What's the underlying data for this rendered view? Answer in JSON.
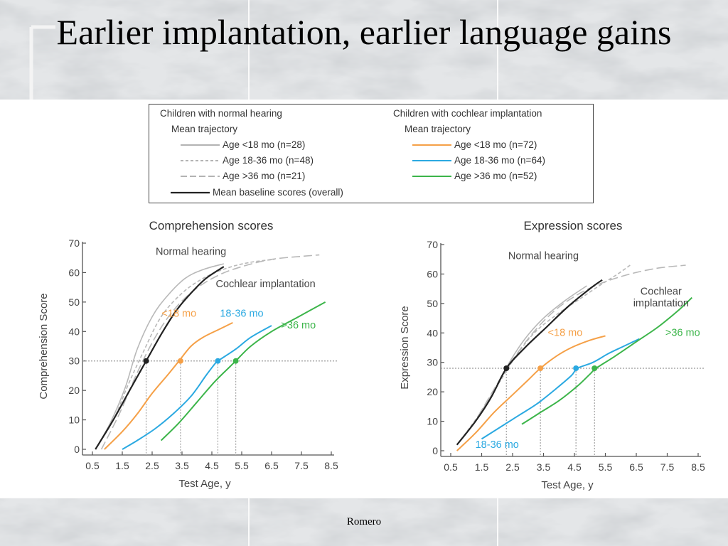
{
  "slide": {
    "title": "Earlier implantation, earlier language gains",
    "footer": "Romero"
  },
  "legend": {
    "normal_heading": "Children with normal hearing",
    "normal_sub": "Mean trajectory",
    "normal_items": [
      "Age <18 mo (n=28)",
      "Age 18-36 mo (n=48)",
      "Age >36 mo (n=21)"
    ],
    "baseline": "Mean baseline scores (overall)",
    "ci_heading": "Children with cochlear implantation",
    "ci_sub": "Mean trajectory",
    "ci_items": [
      "Age <18 mo (n=72)",
      "Age 18-36 mo (n=64)",
      "Age >36 mo (n=52)"
    ]
  },
  "colors": {
    "orange": "#f5a047",
    "blue": "#2ba9e1",
    "green": "#3cb54a",
    "normal_gray": "#b4b4b4",
    "baseline": "#222222"
  },
  "chart_data": [
    {
      "type": "line",
      "title": "Comprehension scores",
      "xlabel": "Test Age, y",
      "ylabel": "Comprehension Score",
      "xlim": [
        0.5,
        8.5
      ],
      "ylim": [
        0,
        70
      ],
      "xticks": [
        "0.5",
        "1.5",
        "2.5",
        "3.5",
        "4.5",
        "5.5",
        "6.5",
        "7.5",
        "8.5"
      ],
      "yticks": [
        "0",
        "10",
        "20",
        "30",
        "40",
        "50",
        "60",
        "70"
      ],
      "reference_score": 30,
      "annotations": [
        {
          "text": "Normal hearing",
          "x": 3.8,
          "y": 66,
          "color": "#444444"
        },
        {
          "text": "Cochlear implantation",
          "x": 6.3,
          "y": 55,
          "color": "#444444"
        },
        {
          "text": "<18 mo",
          "x": 3.4,
          "y": 45,
          "color": "#f5a047"
        },
        {
          "text": "18-36 mo",
          "x": 5.5,
          "y": 45,
          "color": "#2ba9e1"
        },
        {
          "text": ">36 mo",
          "x": 7.4,
          "y": 41,
          "color": "#3cb54a"
        }
      ],
      "series": [
        {
          "key": "normal_lt18",
          "style": "solid",
          "color": "#b8b8b8",
          "points": [
            [
              0.6,
              0
            ],
            [
              1.1,
              9
            ],
            [
              1.6,
              21
            ],
            [
              2.0,
              34
            ],
            [
              2.5,
              45
            ],
            [
              3.0,
              52
            ],
            [
              3.6,
              58
            ],
            [
              4.2,
              61
            ],
            [
              4.9,
              63
            ]
          ]
        },
        {
          "key": "normal_18_36",
          "style": "dashed",
          "color": "#b8b8b8",
          "points": [
            [
              0.6,
              0
            ],
            [
              1.2,
              10
            ],
            [
              1.7,
              22
            ],
            [
              2.2,
              33
            ],
            [
              2.8,
              45
            ],
            [
              3.5,
              53
            ],
            [
              4.2,
              58
            ],
            [
              5.0,
              61.5
            ],
            [
              5.8,
              63.5
            ],
            [
              6.6,
              64.5
            ]
          ]
        },
        {
          "key": "normal_gt36",
          "style": "longdash",
          "color": "#b8b8b8",
          "points": [
            [
              0.8,
              0
            ],
            [
              1.4,
              12
            ],
            [
              2.0,
              26
            ],
            [
              2.6,
              38
            ],
            [
              3.2,
              47
            ],
            [
              3.9,
              54
            ],
            [
              4.7,
              59
            ],
            [
              5.5,
              62
            ],
            [
              6.5,
              64.5
            ],
            [
              7.5,
              65.5
            ],
            [
              8.1,
              66
            ]
          ]
        },
        {
          "key": "baseline",
          "style": "solid",
          "color": "#222222",
          "points": [
            [
              0.6,
              0
            ],
            [
              1.2,
              10
            ],
            [
              1.8,
              21
            ],
            [
              2.3,
              30
            ],
            [
              2.8,
              39
            ],
            [
              3.3,
              47
            ],
            [
              3.8,
              53
            ],
            [
              4.3,
              58
            ],
            [
              4.9,
              62
            ]
          ]
        },
        {
          "key": "ci_lt18",
          "style": "solid",
          "color": "#f5a047",
          "points": [
            [
              0.9,
              0
            ],
            [
              1.5,
              6
            ],
            [
              2.0,
              12
            ],
            [
              2.5,
              19
            ],
            [
              3.0,
              25
            ],
            [
              3.4,
              30
            ],
            [
              3.8,
              35
            ],
            [
              4.2,
              38
            ],
            [
              4.8,
              41
            ],
            [
              5.2,
              43
            ]
          ]
        },
        {
          "key": "ci_18_36",
          "style": "solid",
          "color": "#2ba9e1",
          "points": [
            [
              1.5,
              0
            ],
            [
              2.0,
              3
            ],
            [
              2.6,
              7
            ],
            [
              3.2,
              12
            ],
            [
              3.8,
              18
            ],
            [
              4.3,
              25
            ],
            [
              4.6,
              29
            ],
            [
              4.7,
              30
            ],
            [
              5.3,
              34
            ],
            [
              5.8,
              38
            ],
            [
              6.5,
              42
            ]
          ]
        },
        {
          "key": "ci_gt36",
          "style": "solid",
          "color": "#3cb54a",
          "points": [
            [
              2.8,
              3
            ],
            [
              3.4,
              9
            ],
            [
              4.0,
              16
            ],
            [
              4.6,
              23
            ],
            [
              5.1,
              28
            ],
            [
              5.3,
              30
            ],
            [
              5.8,
              35
            ],
            [
              6.5,
              40
            ],
            [
              7.4,
              45
            ],
            [
              8.3,
              50
            ]
          ]
        }
      ],
      "markers": [
        {
          "x": 2.3,
          "y": 30,
          "color": "#222222"
        },
        {
          "x": 3.45,
          "y": 30,
          "color": "#f5a047"
        },
        {
          "x": 4.7,
          "y": 30,
          "color": "#2ba9e1"
        },
        {
          "x": 5.3,
          "y": 30,
          "color": "#3cb54a"
        }
      ]
    },
    {
      "type": "line",
      "title": "Expression scores",
      "xlabel": "Test Age, y",
      "ylabel": "Expression Score",
      "xlim": [
        0.5,
        8.5
      ],
      "ylim": [
        0,
        70
      ],
      "xticks": [
        "0.5",
        "1.5",
        "2.5",
        "3.5",
        "4.5",
        "5.5",
        "6.5",
        "7.5",
        "8.5"
      ],
      "yticks": [
        "0",
        "10",
        "20",
        "30",
        "40",
        "50",
        "60",
        "70"
      ],
      "reference_score": 28,
      "annotations": [
        {
          "text": "Normal hearing",
          "x": 3.5,
          "y": 65,
          "color": "#444444"
        },
        {
          "text": "Cochlear",
          "x": 7.3,
          "y": 53,
          "color": "#444444"
        },
        {
          "text": "implantation",
          "x": 7.3,
          "y": 49,
          "color": "#444444"
        },
        {
          "text": "<18 mo",
          "x": 4.2,
          "y": 39,
          "color": "#f5a047"
        },
        {
          "text": ">36 mo",
          "x": 8.0,
          "y": 39,
          "color": "#3cb54a"
        },
        {
          "text": "18-36 mo",
          "x": 2.0,
          "y": 1,
          "color": "#2ba9e1"
        }
      ],
      "series": [
        {
          "key": "normal_lt18",
          "style": "solid",
          "color": "#b8b8b8",
          "points": [
            [
              0.7,
              2
            ],
            [
              1.3,
              10
            ],
            [
              1.9,
              20
            ],
            [
              2.4,
              30
            ],
            [
              2.9,
              38
            ],
            [
              3.5,
              45
            ],
            [
              4.2,
              51
            ],
            [
              4.9,
              56
            ]
          ]
        },
        {
          "key": "normal_18_36",
          "style": "dashed",
          "color": "#b8b8b8",
          "points": [
            [
              0.7,
              2
            ],
            [
              1.4,
              12
            ],
            [
              2.0,
              22
            ],
            [
              2.6,
              32
            ],
            [
              3.2,
              40
            ],
            [
              3.9,
              46
            ],
            [
              4.6,
              51
            ],
            [
              5.3,
              56
            ],
            [
              5.9,
              60
            ],
            [
              6.3,
              63
            ]
          ]
        },
        {
          "key": "normal_gt36",
          "style": "longdash",
          "color": "#b8b8b8",
          "points": [
            [
              1.4,
              12
            ],
            [
              2.2,
              26
            ],
            [
              3.0,
              38
            ],
            [
              3.8,
              47
            ],
            [
              4.6,
              53
            ],
            [
              5.4,
              57
            ],
            [
              6.3,
              60
            ],
            [
              7.2,
              62
            ],
            [
              8.1,
              63
            ]
          ]
        },
        {
          "key": "baseline",
          "style": "solid",
          "color": "#222222",
          "points": [
            [
              0.7,
              2
            ],
            [
              1.3,
              10
            ],
            [
              1.8,
              18
            ],
            [
              2.3,
              28
            ],
            [
              2.9,
              35
            ],
            [
              3.6,
              42
            ],
            [
              4.3,
              49
            ],
            [
              5.0,
              55
            ],
            [
              5.4,
              58
            ]
          ]
        },
        {
          "key": "ci_lt18",
          "style": "solid",
          "color": "#f5a047",
          "points": [
            [
              0.7,
              0
            ],
            [
              1.3,
              6
            ],
            [
              1.9,
              13
            ],
            [
              2.5,
              19
            ],
            [
              3.0,
              24
            ],
            [
              3.4,
              28
            ],
            [
              3.9,
              32
            ],
            [
              4.4,
              35
            ],
            [
              5.0,
              37.5
            ],
            [
              5.5,
              39
            ]
          ]
        },
        {
          "key": "ci_18_36",
          "style": "solid",
          "color": "#2ba9e1",
          "points": [
            [
              1.5,
              4
            ],
            [
              2.1,
              8
            ],
            [
              2.7,
              12
            ],
            [
              3.3,
              16
            ],
            [
              3.9,
              21
            ],
            [
              4.4,
              25.5
            ],
            [
              4.6,
              28
            ],
            [
              5.1,
              30
            ],
            [
              5.6,
              33
            ],
            [
              6.1,
              35.5
            ],
            [
              6.6,
              38
            ]
          ]
        },
        {
          "key": "ci_gt36",
          "style": "solid",
          "color": "#3cb54a",
          "points": [
            [
              2.8,
              9
            ],
            [
              3.4,
              13
            ],
            [
              4.0,
              17
            ],
            [
              4.6,
              22
            ],
            [
              5.0,
              26
            ],
            [
              5.2,
              28
            ],
            [
              5.8,
              32
            ],
            [
              6.5,
              37
            ],
            [
              7.2,
              42
            ],
            [
              7.9,
              48
            ],
            [
              8.3,
              52
            ]
          ]
        }
      ],
      "markers": [
        {
          "x": 2.3,
          "y": 28,
          "color": "#222222"
        },
        {
          "x": 3.4,
          "y": 28,
          "color": "#f5a047"
        },
        {
          "x": 4.55,
          "y": 28,
          "color": "#2ba9e1"
        },
        {
          "x": 5.15,
          "y": 28,
          "color": "#3cb54a"
        }
      ]
    }
  ]
}
